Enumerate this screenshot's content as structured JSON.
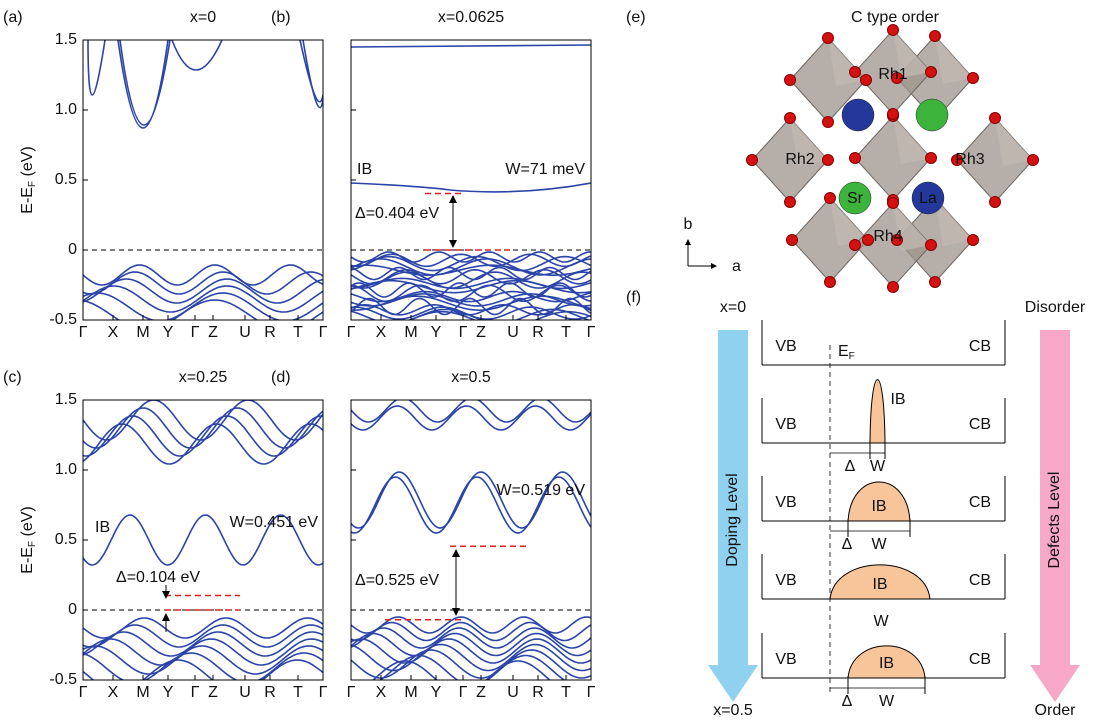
{
  "panels": [
    {
      "label": "(a)",
      "title": "x=0",
      "ylabel": {
        "text": "E-E",
        "sub": "F",
        "unit": " (eV)"
      },
      "show_ytick_labels": true,
      "ylim": [
        -0.5,
        1.5
      ],
      "yticks": [
        -0.5,
        0,
        0.5,
        {
          "value": 1,
          "label": "1.0"
        },
        1.5
      ],
      "categories": [
        "Γ",
        "X",
        "M",
        "Y",
        "Γ",
        "Z",
        "U",
        "R",
        "T",
        "Γ"
      ],
      "fermi_level": 0
    },
    {
      "label": "(b)",
      "title": "x=0.0625",
      "show_ytick_labels": false,
      "ylim": [
        -0.5,
        1.5
      ],
      "yticks": [
        -0.5,
        0,
        0.5,
        {
          "value": 1,
          "label": "1.0"
        },
        1.5
      ],
      "categories": [
        "Γ",
        "X",
        "M",
        "Y",
        "Γ",
        "Z",
        "U",
        "R",
        "T",
        "Γ"
      ],
      "fermi_level": 0,
      "band_label": "IB",
      "width_label": "W=71 meV",
      "gap_label": "Δ=0.404 eV",
      "gap_levels": [
        0,
        0.404
      ]
    },
    {
      "label": "(c)",
      "title": "x=0.25",
      "ylabel": {
        "text": "E-E",
        "sub": "F",
        "unit": " (eV)"
      },
      "show_ytick_labels": true,
      "ylim": [
        -0.5,
        1.5
      ],
      "yticks": [
        -0.5,
        0,
        0.5,
        {
          "value": 1,
          "label": "1.0"
        },
        1.5
      ],
      "categories": [
        "Γ",
        "X",
        "M",
        "Y",
        "Γ",
        "Z",
        "U",
        "R",
        "T",
        "Γ"
      ],
      "fermi_level": 0,
      "band_label": "IB",
      "width_label": "W=0.451 eV",
      "gap_label": "Δ=0.104 eV",
      "gap_levels": [
        0,
        0.104
      ]
    },
    {
      "label": "(d)",
      "title": "x=0.5",
      "show_ytick_labels": false,
      "ylim": [
        -0.5,
        1.5
      ],
      "yticks": [
        -0.5,
        0,
        0.5,
        {
          "value": 1,
          "label": "1.0"
        },
        1.5
      ],
      "categories": [
        "Γ",
        "X",
        "M",
        "Y",
        "Γ",
        "Z",
        "U",
        "R",
        "T",
        "Γ"
      ],
      "fermi_level": 0,
      "width_label": "W=0.519 eV",
      "gap_label": "Δ=0.525 eV",
      "gap_levels": [
        -0.07,
        0.455
      ]
    }
  ],
  "structure": {
    "label": "(e)",
    "title": "C type order",
    "sites": [
      "Rh1",
      "Rh2",
      "Rh3",
      "Rh4",
      "Sr",
      "La"
    ],
    "axes": [
      "b",
      "a"
    ]
  },
  "schematic": {
    "label": "(f)",
    "top_left": "x=0",
    "bottom_left": "x=0.5",
    "top_right": "Disorder",
    "bottom_right": "Order",
    "left_arrow": "Doping Level",
    "right_arrow": "Defects Level",
    "vb": "VB",
    "cb": "CB",
    "ib": "IB",
    "fermi": {
      "text": "E",
      "sub": "F"
    },
    "gap": "Δ",
    "width": "W"
  }
}
